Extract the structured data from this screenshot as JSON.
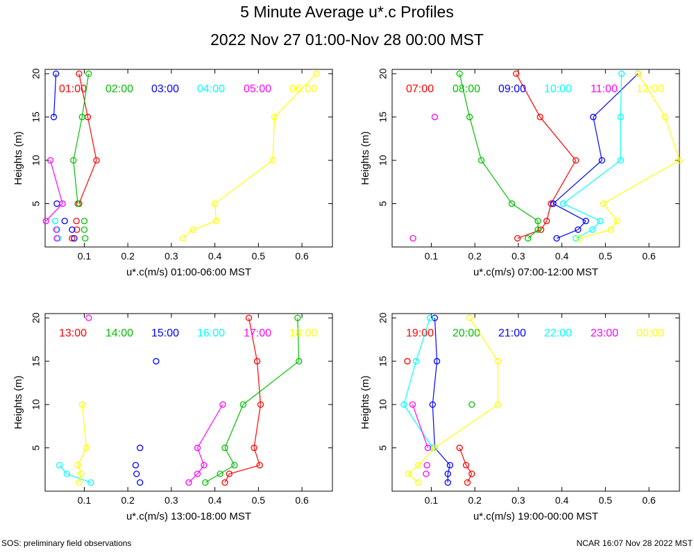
{
  "title": "5 Minute Average u*.c Profiles",
  "subtitle": "2022 Nov 27 01:00-Nov 28 00:00 MST",
  "footer": {
    "left": "SOS: preliminary field observations",
    "right": "NCAR 16:07 Nov 28 2022 MST"
  },
  "colors": [
    "#ff0000",
    "#00c000",
    "#0000ff",
    "#00ffff",
    "#ff00ff",
    "#ffff00"
  ],
  "chart_data": [
    {
      "type": "line",
      "xlabel": "u*.c(m/s) 01:00-06:00 MST",
      "ylabel": "Heights (m)",
      "xlim": [
        0.01,
        0.67
      ],
      "ylim": [
        0,
        20.5
      ],
      "xticks": [
        "0.1",
        "0.2",
        "0.3",
        "0.4",
        "0.5",
        "0.6"
      ],
      "xtick_values": [
        0.1,
        0.2,
        0.3,
        0.4,
        0.5,
        0.6
      ],
      "yticks": [
        "5",
        "10",
        "15",
        "20"
      ],
      "ytick_values": [
        5,
        10,
        15,
        20
      ],
      "series": [
        {
          "name": "01:00",
          "points": [
            [
              0.072,
              1
            ],
            [
              0.083,
              2
            ],
            [
              0.082,
              3
            ],
            [
              0.088,
              5
            ],
            [
              0.128,
              10
            ],
            [
              0.108,
              15
            ],
            [
              0.088,
              20
            ]
          ],
          "connect": [
            [
              3,
              4
            ],
            [
              4,
              5
            ],
            [
              5,
              6
            ]
          ]
        },
        {
          "name": "02:00",
          "points": [
            [
              0.102,
              1
            ],
            [
              0.1,
              2
            ],
            [
              0.1,
              3
            ],
            [
              0.085,
              5
            ],
            [
              0.075,
              10
            ],
            [
              0.095,
              15
            ],
            [
              0.11,
              20
            ]
          ],
          "connect": [
            [
              3,
              4
            ],
            [
              4,
              5
            ],
            [
              5,
              6
            ]
          ]
        },
        {
          "name": "03:00",
          "points": [
            [
              0.077,
              1
            ],
            [
              0.072,
              2
            ],
            [
              0.055,
              3
            ],
            [
              0.037,
              5
            ],
            [
              0.03,
              15
            ],
            [
              0.035,
              20
            ]
          ],
          "connect": [
            [
              4,
              5
            ]
          ]
        },
        {
          "name": "04:00",
          "points": [
            [
              0.04,
              1
            ],
            [
              0.035,
              2
            ],
            [
              0.033,
              3
            ]
          ],
          "connect": []
        },
        {
          "name": "05:00",
          "points": [
            [
              0.037,
              1
            ],
            [
              0.037,
              2
            ],
            [
              0.012,
              3
            ],
            [
              0.05,
              5
            ],
            [
              0.022,
              10
            ]
          ],
          "connect": [
            [
              2,
              3
            ],
            [
              3,
              4
            ]
          ]
        },
        {
          "name": "06:00",
          "points": [
            [
              0.327,
              1
            ],
            [
              0.35,
              2
            ],
            [
              0.403,
              3
            ],
            [
              0.4,
              5
            ],
            [
              0.533,
              10
            ],
            [
              0.537,
              15
            ],
            [
              0.633,
              20
            ]
          ],
          "connect": [
            [
              0,
              1
            ],
            [
              1,
              2
            ],
            [
              2,
              3
            ],
            [
              3,
              4
            ],
            [
              4,
              5
            ],
            [
              5,
              6
            ]
          ]
        }
      ]
    },
    {
      "type": "line",
      "xlabel": "u*.c(m/s) 07:00-12:00 MST",
      "ylabel": "Heights (m)",
      "xlim": [
        0.01,
        0.67
      ],
      "ylim": [
        0,
        20.5
      ],
      "xticks": [
        "0.1",
        "0.2",
        "0.3",
        "0.4",
        "0.5",
        "0.6"
      ],
      "xtick_values": [
        0.1,
        0.2,
        0.3,
        0.4,
        0.5,
        0.6
      ],
      "yticks": [
        "5",
        "10",
        "15",
        "20"
      ],
      "ytick_values": [
        5,
        10,
        15,
        20
      ],
      "series": [
        {
          "name": "07:00",
          "points": [
            [
              0.298,
              1
            ],
            [
              0.352,
              2
            ],
            [
              0.365,
              3
            ],
            [
              0.375,
              5
            ],
            [
              0.432,
              10
            ],
            [
              0.35,
              15
            ],
            [
              0.295,
              20
            ]
          ],
          "connect": [
            [
              0,
              1
            ],
            [
              1,
              2
            ],
            [
              2,
              3
            ],
            [
              3,
              4
            ],
            [
              4,
              5
            ],
            [
              5,
              6
            ]
          ]
        },
        {
          "name": "08:00",
          "points": [
            [
              0.322,
              1
            ],
            [
              0.345,
              2
            ],
            [
              0.345,
              3
            ],
            [
              0.285,
              5
            ],
            [
              0.215,
              10
            ],
            [
              0.188,
              15
            ],
            [
              0.165,
              20
            ]
          ],
          "connect": [
            [
              0,
              1
            ],
            [
              1,
              2
            ],
            [
              2,
              3
            ],
            [
              3,
              4
            ],
            [
              4,
              5
            ],
            [
              5,
              6
            ]
          ]
        },
        {
          "name": "09:00",
          "points": [
            [
              0.388,
              1
            ],
            [
              0.437,
              2
            ],
            [
              0.455,
              3
            ],
            [
              0.38,
              5
            ],
            [
              0.492,
              10
            ],
            [
              0.472,
              15
            ],
            [
              0.575,
              20
            ]
          ],
          "connect": [
            [
              0,
              1
            ],
            [
              1,
              2
            ],
            [
              2,
              3
            ],
            [
              3,
              4
            ],
            [
              4,
              5
            ],
            [
              5,
              6
            ]
          ]
        },
        {
          "name": "10:00",
          "points": [
            [
              0.432,
              1
            ],
            [
              0.47,
              2
            ],
            [
              0.488,
              3
            ],
            [
              0.403,
              5
            ],
            [
              0.535,
              10
            ],
            [
              0.535,
              15
            ],
            [
              0.537,
              20
            ]
          ],
          "connect": [
            [
              0,
              1
            ],
            [
              1,
              2
            ],
            [
              2,
              3
            ],
            [
              3,
              4
            ],
            [
              4,
              5
            ],
            [
              5,
              6
            ]
          ]
        },
        {
          "name": "11:00",
          "points": [
            [
              0.058,
              1
            ],
            [
              0.108,
              15
            ]
          ],
          "connect": []
        },
        {
          "name": "12:00",
          "points": [
            [
              0.44,
              1
            ],
            [
              0.512,
              2
            ],
            [
              0.527,
              3
            ],
            [
              0.495,
              5
            ],
            [
              0.67,
              10
            ],
            [
              0.637,
              15
            ],
            [
              0.575,
              20
            ]
          ],
          "connect": [
            [
              0,
              1
            ],
            [
              1,
              2
            ],
            [
              2,
              3
            ],
            [
              3,
              4
            ],
            [
              4,
              5
            ],
            [
              5,
              6
            ]
          ]
        }
      ]
    },
    {
      "type": "line",
      "xlabel": "u*.c(m/s) 13:00-18:00 MST",
      "ylabel": "Heights (m)",
      "xlim": [
        0.01,
        0.67
      ],
      "ylim": [
        0,
        20.5
      ],
      "xticks": [
        "0.1",
        "0.2",
        "0.3",
        "0.4",
        "0.5",
        "0.6"
      ],
      "xtick_values": [
        0.1,
        0.2,
        0.3,
        0.4,
        0.5,
        0.6
      ],
      "yticks": [
        "5",
        "10",
        "15",
        "20"
      ],
      "ytick_values": [
        5,
        10,
        15,
        20
      ],
      "series": [
        {
          "name": "13:00",
          "points": [
            [
              0.423,
              1
            ],
            [
              0.433,
              2
            ],
            [
              0.503,
              3
            ],
            [
              0.49,
              5
            ],
            [
              0.505,
              10
            ],
            [
              0.497,
              15
            ],
            [
              0.478,
              20
            ]
          ],
          "connect": [
            [
              0,
              1
            ],
            [
              1,
              2
            ],
            [
              2,
              3
            ],
            [
              3,
              4
            ],
            [
              4,
              5
            ],
            [
              5,
              6
            ]
          ]
        },
        {
          "name": "14:00",
          "points": [
            [
              0.378,
              1
            ],
            [
              0.412,
              2
            ],
            [
              0.445,
              3
            ],
            [
              0.423,
              5
            ],
            [
              0.465,
              10
            ],
            [
              0.593,
              15
            ],
            [
              0.59,
              20
            ]
          ],
          "connect": [
            [
              0,
              1
            ],
            [
              1,
              2
            ],
            [
              2,
              3
            ],
            [
              3,
              4
            ],
            [
              4,
              5
            ],
            [
              5,
              6
            ]
          ]
        },
        {
          "name": "15:00",
          "points": [
            [
              0.228,
              1
            ],
            [
              0.22,
              2
            ],
            [
              0.218,
              3
            ],
            [
              0.228,
              5
            ],
            [
              0.265,
              15
            ]
          ],
          "connect": []
        },
        {
          "name": "16:00",
          "points": [
            [
              0.115,
              1
            ],
            [
              0.06,
              2
            ],
            [
              0.043,
              3
            ]
          ],
          "connect": [
            [
              0,
              1
            ],
            [
              1,
              2
            ]
          ]
        },
        {
          "name": "17:00",
          "points": [
            [
              0.34,
              1
            ],
            [
              0.36,
              2
            ],
            [
              0.375,
              3
            ],
            [
              0.36,
              5
            ],
            [
              0.418,
              10
            ],
            [
              0.11,
              20
            ]
          ],
          "connect": [
            [
              0,
              1
            ],
            [
              1,
              2
            ],
            [
              2,
              3
            ],
            [
              3,
              4
            ]
          ]
        },
        {
          "name": "18:00",
          "points": [
            [
              0.088,
              1
            ],
            [
              0.093,
              2
            ],
            [
              0.085,
              3
            ],
            [
              0.105,
              5
            ],
            [
              0.095,
              10
            ]
          ],
          "connect": [
            [
              0,
              1
            ],
            [
              1,
              2
            ],
            [
              2,
              3
            ],
            [
              3,
              4
            ]
          ]
        }
      ]
    },
    {
      "type": "line",
      "xlabel": "u*.c(m/s) 19:00-00:00 MST",
      "ylabel": "Heights (m)",
      "xlim": [
        0.01,
        0.67
      ],
      "ylim": [
        0,
        20.5
      ],
      "xticks": [
        "0.1",
        "0.2",
        "0.3",
        "0.4",
        "0.5",
        "0.6"
      ],
      "xtick_values": [
        0.1,
        0.2,
        0.3,
        0.4,
        0.5,
        0.6
      ],
      "yticks": [
        "5",
        "10",
        "15",
        "20"
      ],
      "ytick_values": [
        5,
        10,
        15,
        20
      ],
      "series": [
        {
          "name": "19:00",
          "points": [
            [
              0.183,
              1
            ],
            [
              0.193,
              2
            ],
            [
              0.18,
              3
            ],
            [
              0.165,
              5
            ],
            [
              0.045,
              15
            ]
          ],
          "connect": [
            [
              0,
              1
            ],
            [
              1,
              2
            ],
            [
              2,
              3
            ]
          ]
        },
        {
          "name": "20:00",
          "points": [
            [
              0.108,
              5
            ],
            [
              0.193,
              10
            ]
          ],
          "connect": []
        },
        {
          "name": "21:00",
          "points": [
            [
              0.138,
              1
            ],
            [
              0.138,
              2
            ],
            [
              0.143,
              3
            ],
            [
              0.108,
              5
            ],
            [
              0.103,
              10
            ],
            [
              0.113,
              15
            ],
            [
              0.108,
              20
            ]
          ],
          "connect": [
            [
              0,
              1
            ],
            [
              1,
              2
            ],
            [
              2,
              3
            ],
            [
              3,
              4
            ],
            [
              4,
              5
            ],
            [
              5,
              6
            ]
          ]
        },
        {
          "name": "22:00",
          "points": [
            [
              0.103,
              5
            ],
            [
              0.037,
              10
            ],
            [
              0.065,
              15
            ],
            [
              0.097,
              20
            ]
          ],
          "connect": [
            [
              0,
              1
            ],
            [
              1,
              2
            ],
            [
              2,
              3
            ]
          ]
        },
        {
          "name": "23:00",
          "points": [
            [
              0.088,
              2
            ],
            [
              0.09,
              3
            ],
            [
              0.092,
              5
            ],
            [
              0.057,
              10
            ]
          ],
          "connect": [
            [
              2,
              3
            ]
          ]
        },
        {
          "name": "00:00",
          "points": [
            [
              0.07,
              1
            ],
            [
              0.047,
              2
            ],
            [
              0.07,
              3
            ],
            [
              0.108,
              5
            ],
            [
              0.253,
              10
            ],
            [
              0.253,
              15
            ],
            [
              0.188,
              20
            ]
          ],
          "connect": [
            [
              0,
              1
            ],
            [
              1,
              2
            ],
            [
              2,
              3
            ],
            [
              3,
              4
            ],
            [
              4,
              5
            ],
            [
              5,
              6
            ]
          ]
        }
      ]
    }
  ]
}
